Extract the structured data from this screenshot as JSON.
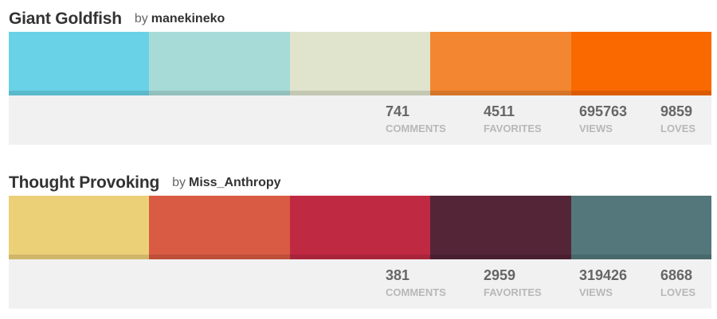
{
  "palettes": [
    {
      "title": "Giant Goldfish",
      "by_label": "by",
      "author": "manekineko",
      "colors": [
        "#69D2E7",
        "#A7DBD8",
        "#E0E4CC",
        "#F38630",
        "#FA6900"
      ],
      "stats": {
        "comments": {
          "value": "741",
          "label": "COMMENTS"
        },
        "favorites": {
          "value": "4511",
          "label": "FAVORITES"
        },
        "views": {
          "value": "695763",
          "label": "VIEWS"
        },
        "loves": {
          "value": "9859",
          "label": "LOVES"
        }
      }
    },
    {
      "title": "Thought Provoking",
      "by_label": "by",
      "author": "Miss_Anthropy",
      "colors": [
        "#ECD078",
        "#D95B43",
        "#C02942",
        "#542437",
        "#53777A"
      ],
      "stats": {
        "comments": {
          "value": "381",
          "label": "COMMENTS"
        },
        "favorites": {
          "value": "2959",
          "label": "FAVORITES"
        },
        "views": {
          "value": "319426",
          "label": "VIEWS"
        },
        "loves": {
          "value": "6868",
          "label": "LOVES"
        }
      }
    }
  ]
}
